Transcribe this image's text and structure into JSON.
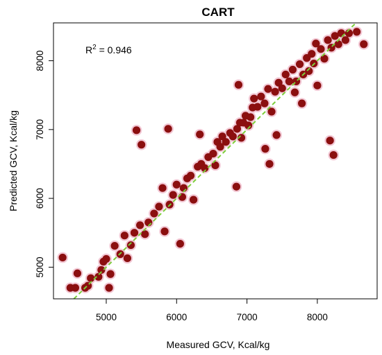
{
  "chart_data": {
    "type": "scatter",
    "title": "CART",
    "xlabel": "Measured GCV, Kcal/kg",
    "ylabel": "Predicted GCV, Kcal/kg",
    "xlim": [
      4250,
      8850
    ],
    "ylim": [
      4540,
      8550
    ],
    "xticks": [
      5000,
      6000,
      7000,
      8000
    ],
    "yticks": [
      5000,
      6000,
      7000,
      8000
    ],
    "grid": false,
    "legend": "none",
    "annotation": {
      "prefix": "R",
      "sup": "2",
      "text": " = 0.946"
    },
    "reference_line": {
      "kind": "y=x",
      "color": "#7ccd3a"
    },
    "point_color": "#8b0f0f",
    "point_halo_color": "#f2c7d4",
    "points": [
      [
        4380,
        5140
      ],
      [
        4490,
        4700
      ],
      [
        4560,
        4700
      ],
      [
        4590,
        4910
      ],
      [
        4700,
        4700
      ],
      [
        4740,
        4730
      ],
      [
        4780,
        4840
      ],
      [
        4890,
        4860
      ],
      [
        4930,
        4960
      ],
      [
        4960,
        5080
      ],
      [
        5000,
        5120
      ],
      [
        5040,
        4700
      ],
      [
        5060,
        4900
      ],
      [
        5120,
        5310
      ],
      [
        5200,
        5190
      ],
      [
        5260,
        5460
      ],
      [
        5300,
        5130
      ],
      [
        5350,
        5320
      ],
      [
        5400,
        5500
      ],
      [
        5430,
        6990
      ],
      [
        5480,
        5610
      ],
      [
        5500,
        6780
      ],
      [
        5550,
        5480
      ],
      [
        5600,
        5650
      ],
      [
        5680,
        5780
      ],
      [
        5750,
        5880
      ],
      [
        5800,
        6150
      ],
      [
        5830,
        5520
      ],
      [
        5880,
        7010
      ],
      [
        5900,
        5910
      ],
      [
        5950,
        6050
      ],
      [
        6000,
        6200
      ],
      [
        6050,
        5340
      ],
      [
        6080,
        6020
      ],
      [
        6100,
        6150
      ],
      [
        6150,
        6290
      ],
      [
        6200,
        6330
      ],
      [
        6240,
        5980
      ],
      [
        6300,
        6460
      ],
      [
        6330,
        6930
      ],
      [
        6350,
        6500
      ],
      [
        6400,
        6440
      ],
      [
        6450,
        6600
      ],
      [
        6520,
        6650
      ],
      [
        6550,
        6480
      ],
      [
        6580,
        6820
      ],
      [
        6620,
        6750
      ],
      [
        6650,
        6900
      ],
      [
        6700,
        6820
      ],
      [
        6760,
        6950
      ],
      [
        6800,
        6900
      ],
      [
        6850,
        6170
      ],
      [
        6860,
        7010
      ],
      [
        6880,
        7650
      ],
      [
        6900,
        7100
      ],
      [
        6920,
        6880
      ],
      [
        6950,
        7100
      ],
      [
        6980,
        7200
      ],
      [
        7020,
        7060
      ],
      [
        7050,
        7180
      ],
      [
        7080,
        7320
      ],
      [
        7100,
        7450
      ],
      [
        7150,
        7330
      ],
      [
        7200,
        7480
      ],
      [
        7250,
        7380
      ],
      [
        7260,
        6720
      ],
      [
        7300,
        7590
      ],
      [
        7320,
        6500
      ],
      [
        7350,
        7260
      ],
      [
        7400,
        7550
      ],
      [
        7420,
        6920
      ],
      [
        7450,
        7680
      ],
      [
        7500,
        7600
      ],
      [
        7550,
        7800
      ],
      [
        7600,
        7700
      ],
      [
        7650,
        7870
      ],
      [
        7680,
        7540
      ],
      [
        7700,
        7700
      ],
      [
        7750,
        7950
      ],
      [
        7780,
        7380
      ],
      [
        7800,
        7800
      ],
      [
        7850,
        8040
      ],
      [
        7880,
        7850
      ],
      [
        7920,
        8100
      ],
      [
        7950,
        7960
      ],
      [
        7980,
        8250
      ],
      [
        8000,
        7640
      ],
      [
        8050,
        8170
      ],
      [
        8100,
        8030
      ],
      [
        8150,
        8300
      ],
      [
        8180,
        6840
      ],
      [
        8200,
        8190
      ],
      [
        8230,
        6630
      ],
      [
        8250,
        8360
      ],
      [
        8300,
        8240
      ],
      [
        8340,
        8400
      ],
      [
        8400,
        8300
      ],
      [
        8450,
        8400
      ],
      [
        8560,
        8420
      ],
      [
        8660,
        8240
      ]
    ]
  }
}
